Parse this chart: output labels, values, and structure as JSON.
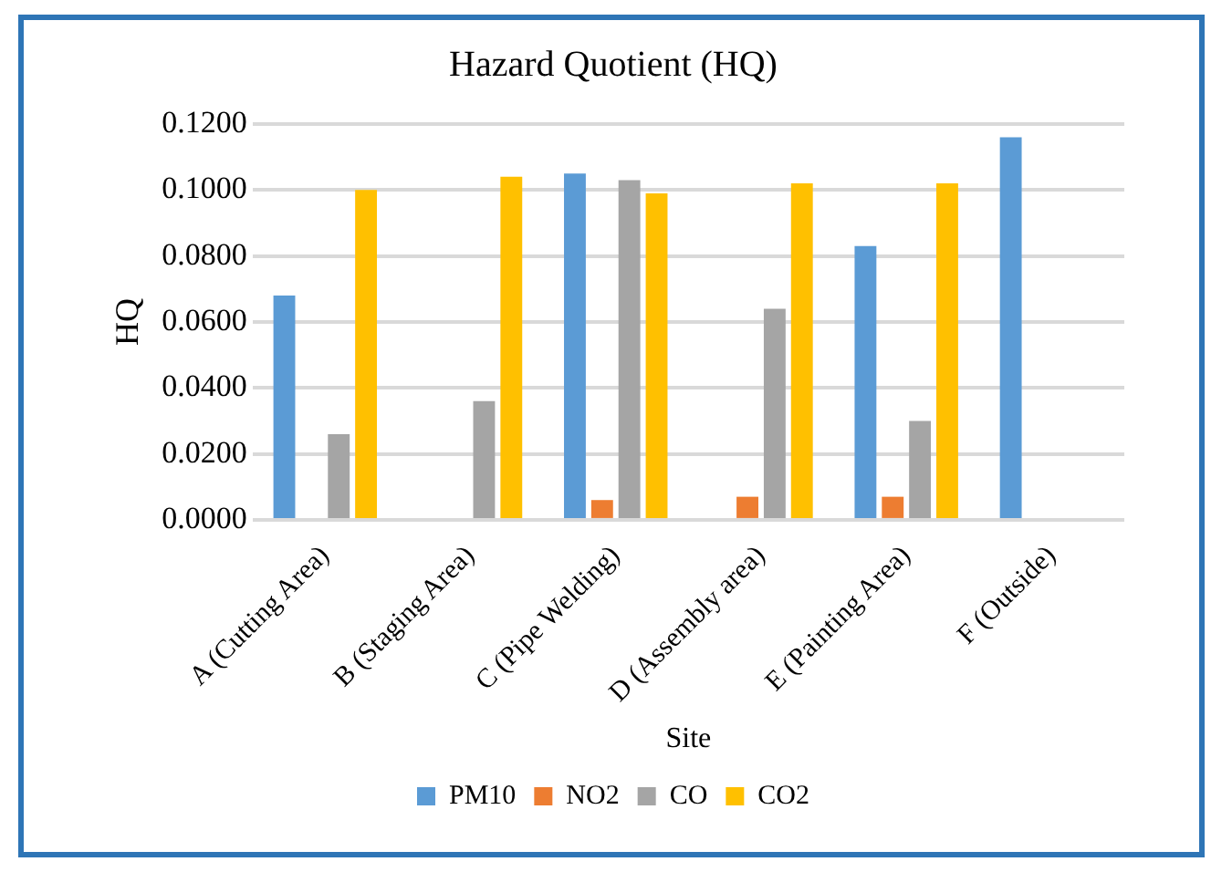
{
  "chart_data": {
    "type": "bar",
    "title": "Hazard Quotient (HQ)",
    "xlabel": "Site",
    "ylabel": "HQ",
    "categories": [
      "A (Cutting Area)",
      "B (Staging Area)",
      "C (Pipe Welding)",
      "D (Assembly area)",
      "E (Painting Area)",
      "F (Outside)"
    ],
    "series": [
      {
        "name": "PM10",
        "color": "#5b9bd5",
        "values": [
          0.068,
          0,
          0.105,
          0,
          0.083,
          0.116
        ]
      },
      {
        "name": "NO2",
        "color": "#ed7d31",
        "values": [
          0,
          0,
          0.006,
          0.007,
          0.007,
          0
        ]
      },
      {
        "name": "CO",
        "color": "#a5a5a5",
        "values": [
          0.026,
          0.036,
          0.103,
          0.064,
          0.03,
          0
        ]
      },
      {
        "name": "CO2",
        "color": "#ffc000",
        "values": [
          0.1,
          0.104,
          0.099,
          0.102,
          0.102,
          0
        ]
      }
    ],
    "ylim": [
      0,
      0.12
    ],
    "yticks": [
      {
        "value": 0,
        "label": "0.0000"
      },
      {
        "value": 0.02,
        "label": "0.0200"
      },
      {
        "value": 0.04,
        "label": "0.0400"
      },
      {
        "value": 0.06,
        "label": "0.0600"
      },
      {
        "value": 0.08,
        "label": "0.0800"
      },
      {
        "value": 0.1,
        "label": "0.1000"
      },
      {
        "value": 0.12,
        "label": "0.1200"
      }
    ],
    "grid": "y",
    "legend": "bottom"
  }
}
